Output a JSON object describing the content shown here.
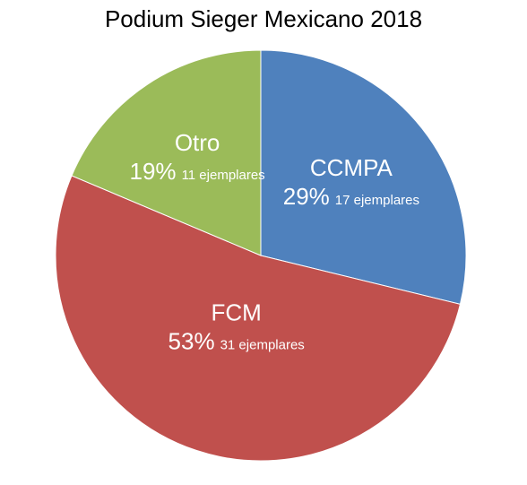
{
  "chart_data": {
    "type": "pie",
    "title": "Podium Sieger Mexicano 2018",
    "slices": [
      {
        "label": "CCMPA",
        "value": 17,
        "percent_label": "29%",
        "count_label": "17 ejemplares",
        "color": "#4f81bd"
      },
      {
        "label": "FCM",
        "value": 31,
        "percent_label": "53%",
        "count_label": "31 ejemplares",
        "color": "#c0504d"
      },
      {
        "label": "Otro",
        "value": 11,
        "percent_label": "19%",
        "count_label": "11 ejemplares",
        "color": "#9bbb59"
      }
    ],
    "start_angle_deg": 0,
    "direction": "clockwise"
  }
}
